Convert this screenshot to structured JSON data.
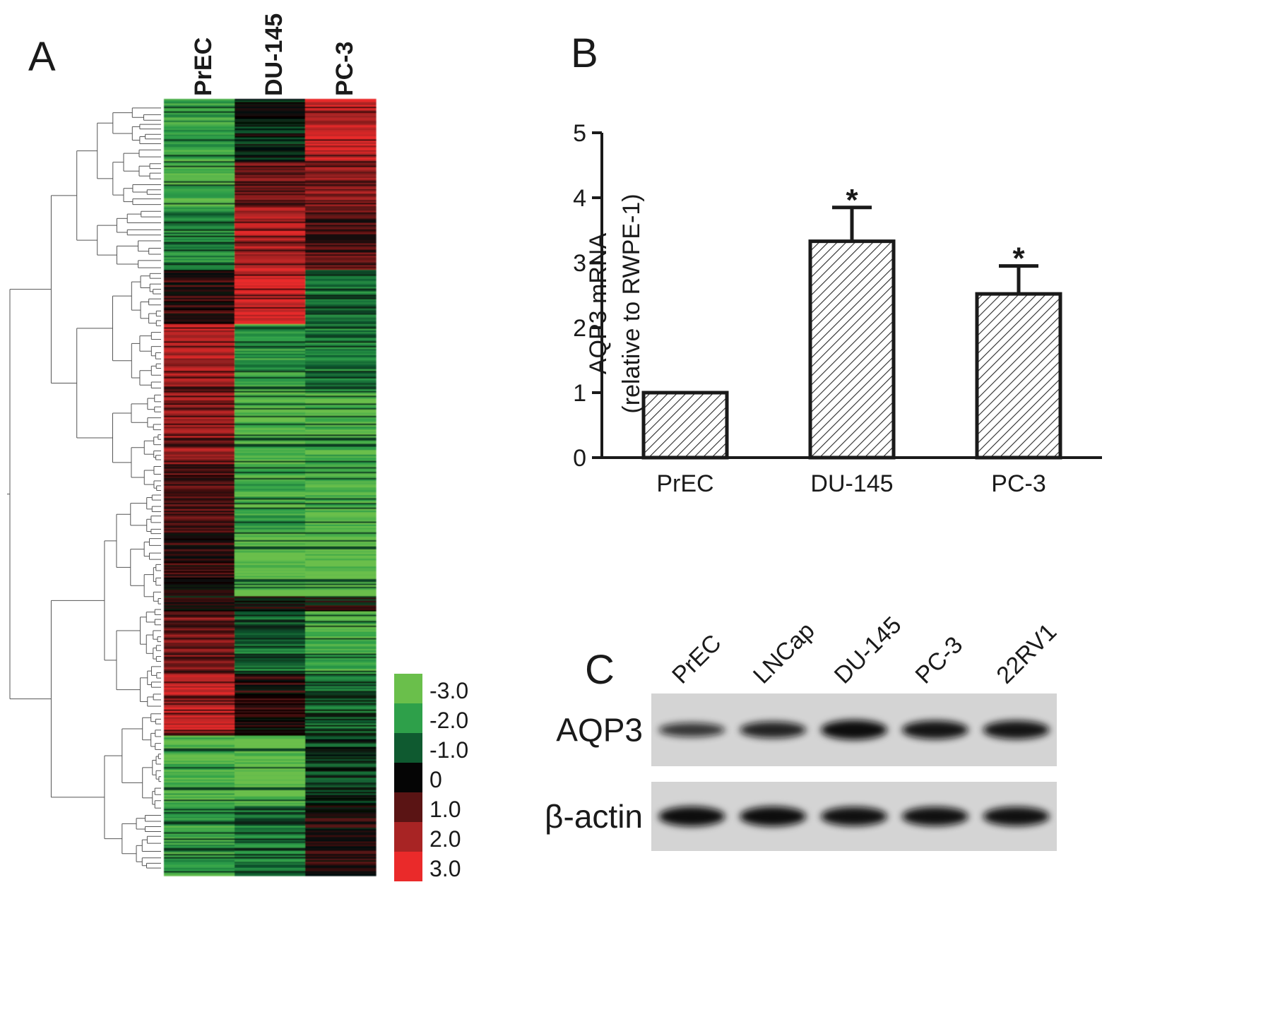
{
  "panels": {
    "a": {
      "label": "A"
    },
    "b": {
      "label": "B"
    },
    "c": {
      "label": "C"
    }
  },
  "chart_data": [
    {
      "type": "heatmap",
      "panel": "A",
      "columns": [
        "PrEC",
        "DU-145",
        "PC-3"
      ],
      "legend": {
        "values": [
          "-3.0",
          "-2.0",
          "-1.0",
          "0",
          "1.0",
          "2.0",
          "3.0"
        ],
        "colors": [
          "#6abf4b",
          "#2ea04a",
          "#0f5a30",
          "#050505",
          "#5a1414",
          "#a82424",
          "#ea2a2a"
        ]
      },
      "dendrogram": "left",
      "row_blocks": [
        {
          "rows": 40,
          "values": [
            -2.2,
            -0.3,
            2.4
          ]
        },
        {
          "rows": 30,
          "values": [
            -2.5,
            1.2,
            1.6
          ]
        },
        {
          "rows": 40,
          "values": [
            -1.6,
            2.3,
            0.9
          ]
        },
        {
          "rows": 35,
          "values": [
            0.6,
            2.6,
            -1.3
          ]
        },
        {
          "rows": 40,
          "values": [
            2.1,
            -2.0,
            -1.4
          ]
        },
        {
          "rows": 50,
          "values": [
            1.8,
            -2.8,
            -2.5
          ]
        },
        {
          "rows": 45,
          "values": [
            0.8,
            -2.3,
            -2.6
          ]
        },
        {
          "rows": 40,
          "values": [
            0.5,
            -3.0,
            -3.0
          ]
        },
        {
          "rows": 10,
          "values": [
            0.0,
            0.0,
            0.0
          ]
        },
        {
          "rows": 40,
          "values": [
            1.4,
            -1.2,
            -2.4
          ]
        },
        {
          "rows": 40,
          "values": [
            2.5,
            0.3,
            -1.0
          ]
        },
        {
          "rows": 45,
          "values": [
            -2.6,
            -3.0,
            -0.6
          ]
        },
        {
          "rows": 45,
          "values": [
            -2.2,
            -1.3,
            0.4
          ]
        }
      ]
    },
    {
      "type": "bar",
      "panel": "B",
      "categories": [
        "PrEC",
        "DU-145",
        "PC-3"
      ],
      "values": [
        1.0,
        3.33,
        2.52
      ],
      "error": [
        0,
        0.52,
        0.43
      ],
      "significance": [
        "",
        "*",
        "*"
      ],
      "ylabel_line1": "AQP3 mRNA",
      "ylabel_line2": "(relative to RWPE-1)",
      "ylim": [
        0,
        5
      ],
      "yticks": [
        "0",
        "1",
        "2",
        "3",
        "4",
        "5"
      ],
      "grid": false,
      "bar_fill": "diagonal-hatch"
    },
    {
      "type": "blot",
      "panel": "C",
      "lanes": [
        "PrEC",
        "LNCap",
        "DU-145",
        "PC-3",
        "22RV1"
      ],
      "rows": [
        {
          "label": "AQP3",
          "band_intensity": [
            0.55,
            0.75,
            1.0,
            0.9,
            0.9
          ]
        },
        {
          "label": "β-actin",
          "band_intensity": [
            1.0,
            1.0,
            0.95,
            0.95,
            0.95
          ]
        }
      ]
    }
  ]
}
